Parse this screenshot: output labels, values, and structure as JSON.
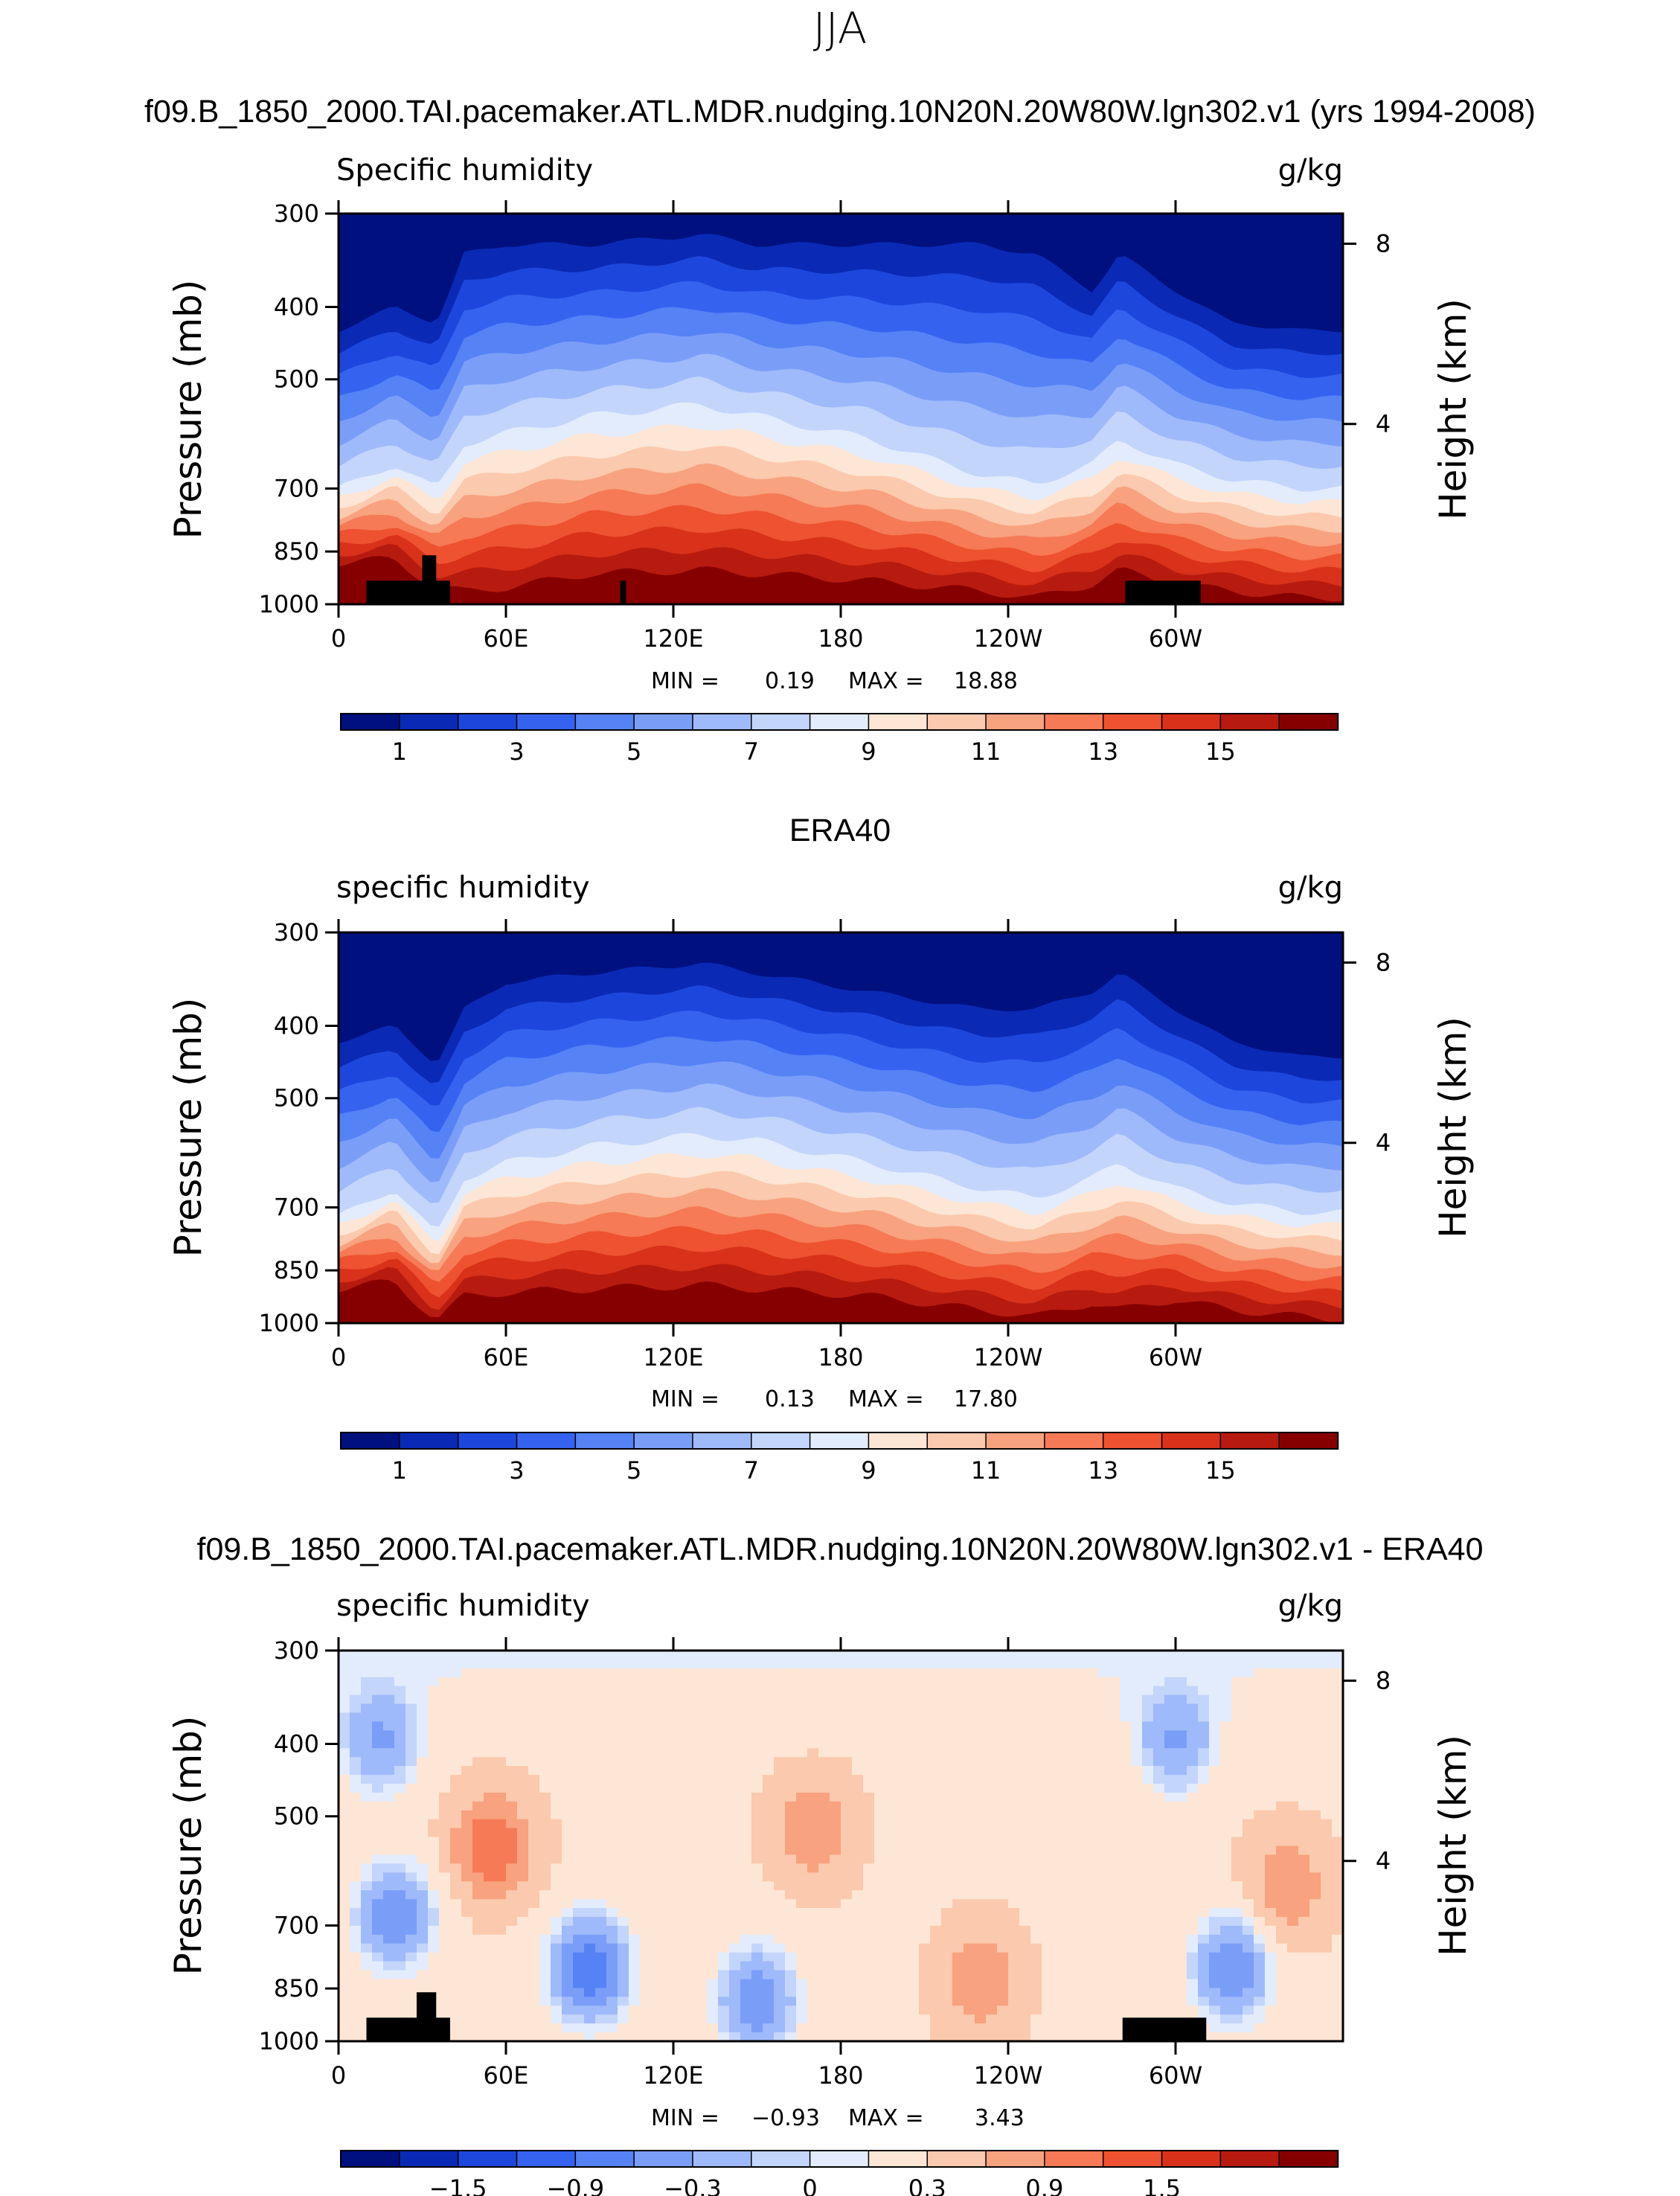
{
  "figure": {
    "season": "JJA",
    "panels": [
      {
        "title": "f09.B_1850_2000.TAI.pacemaker.ATL.MDR.nudging.10N20N.20W80W.lgn302.v1 (yrs 1994-2008)",
        "left_label": "Specific humidity",
        "units": "g/kg",
        "stats": {
          "min_label": "MIN =",
          "min": "0.19",
          "max_label": "MAX =",
          "max": "18.88"
        },
        "colorbar_labels": [
          "1",
          "3",
          "5",
          "7",
          "9",
          "11",
          "13",
          "15"
        ]
      },
      {
        "title": "ERA40",
        "left_label": "specific humidity",
        "units": "g/kg",
        "stats": {
          "min_label": "MIN =",
          "min": "0.13",
          "max_label": "MAX =",
          "max": "17.80"
        },
        "colorbar_labels": [
          "1",
          "3",
          "5",
          "7",
          "9",
          "11",
          "13",
          "15"
        ]
      },
      {
        "title": "f09.B_1850_2000.TAI.pacemaker.ATL.MDR.nudging.10N20N.20W80W.lgn302.v1 - ERA40",
        "left_label": "specific humidity",
        "units": "g/kg",
        "stats": {
          "min_label": "MIN =",
          "min": "−0.93",
          "max_label": "MAX =",
          "max": "3.43"
        },
        "colorbar_labels": [
          "−1.5",
          "−0.9",
          "−0.3",
          "0",
          "0.3",
          "0.9",
          "1.5"
        ]
      }
    ],
    "axes": {
      "ylabel": "Pressure (mb)",
      "ylabel_right": "Height (km)",
      "pressure_ticks": [
        "300",
        "400",
        "500",
        "700",
        "850",
        "1000"
      ],
      "height_ticks": [
        "8",
        "4"
      ],
      "lon_ticks": [
        "0",
        "60E",
        "120E",
        "180",
        "120W",
        "60W"
      ]
    }
  },
  "chart_data": [
    {
      "type": "heatmap",
      "title": "f09.B_1850_2000.TAI.pacemaker.ATL.MDR.nudging.10N20N.20W80W.lgn302.v1 (yrs 1994-2008)",
      "variable": "Specific humidity",
      "units": "g/kg",
      "xlabel": "",
      "ylabel": "Pressure (mb)",
      "ylabel_right": "Height (km)",
      "xlim": [
        0,
        360
      ],
      "ylim": [
        300,
        1000
      ],
      "x_ticks": [
        0,
        60,
        120,
        180,
        240,
        300
      ],
      "y_ticks": [
        300,
        400,
        500,
        700,
        850,
        1000
      ],
      "y_right_ticks_km": [
        4,
        8
      ],
      "contour_levels": [
        1,
        2,
        3,
        4,
        5,
        6,
        7,
        8,
        9,
        10,
        11,
        12,
        13,
        14,
        15
      ],
      "min": 0.19,
      "max": 18.88,
      "colors": [
        "#00107f",
        "#0a2ab5",
        "#1d47dc",
        "#3563f0",
        "#5582f5",
        "#7a9ef8",
        "#9fbafa",
        "#c3d5fb",
        "#e3ecfc",
        "#fde6d5",
        "#fbc9ad",
        "#f8a27f",
        "#f57a55",
        "#ee5230",
        "#d9311a",
        "#b71b0f",
        "#870000"
      ],
      "moisture_tops_mb": {
        "lon_deg": [
          0,
          20,
          35,
          45,
          60,
          90,
          130,
          150,
          190,
          230,
          250,
          270,
          280,
          300,
          320,
          345,
          360
        ],
        "level_1": [
          430,
          400,
          420,
          340,
          330,
          330,
          320,
          330,
          330,
          330,
          340,
          380,
          340,
          380,
          420,
          430,
          430
        ],
        "level_8": [
          700,
          650,
          700,
          610,
          590,
          560,
          540,
          560,
          600,
          670,
          690,
          650,
          600,
          650,
          680,
          700,
          700
        ],
        "level_15": [
          880,
          870,
          950,
          960,
          950,
          910,
          900,
          910,
          930,
          960,
          980,
          940,
          900,
          940,
          960,
          980,
          980
        ]
      },
      "topography_masks": [
        {
          "lon": [
            10,
            40
          ],
          "top_mb": 930
        },
        {
          "lon": [
            30,
            35
          ],
          "top_mb": 860
        },
        {
          "lon": [
            101,
            103
          ],
          "top_mb": 930
        },
        {
          "lon": [
            282,
            309
          ],
          "top_mb": 930
        }
      ]
    },
    {
      "type": "heatmap",
      "title": "ERA40",
      "variable": "specific humidity",
      "units": "g/kg",
      "xlabel": "",
      "ylabel": "Pressure (mb)",
      "ylabel_right": "Height (km)",
      "xlim": [
        0,
        360
      ],
      "ylim": [
        300,
        1000
      ],
      "x_ticks": [
        0,
        60,
        120,
        180,
        240,
        300
      ],
      "y_ticks": [
        300,
        400,
        500,
        700,
        850,
        1000
      ],
      "y_right_ticks_km": [
        4,
        8
      ],
      "contour_levels": [
        1,
        2,
        3,
        4,
        5,
        6,
        7,
        8,
        9,
        10,
        11,
        12,
        13,
        14,
        15
      ],
      "min": 0.13,
      "max": 17.8,
      "colors": [
        "#00107f",
        "#0a2ab5",
        "#1d47dc",
        "#3563f0",
        "#5582f5",
        "#7a9ef8",
        "#9fbafa",
        "#c3d5fb",
        "#e3ecfc",
        "#fde6d5",
        "#fbc9ad",
        "#f8a27f",
        "#f57a55",
        "#ee5230",
        "#d9311a",
        "#b71b0f",
        "#870000"
      ],
      "moisture_tops_mb": {
        "lon_deg": [
          0,
          20,
          35,
          45,
          60,
          90,
          130,
          150,
          190,
          230,
          250,
          270,
          280,
          300,
          320,
          345,
          360
        ],
        "level_1": [
          420,
          400,
          450,
          380,
          350,
          340,
          330,
          340,
          360,
          380,
          380,
          360,
          340,
          380,
          420,
          440,
          440
        ],
        "level_8": [
          720,
          660,
          760,
          640,
          610,
          580,
          560,
          570,
          610,
          660,
          680,
          640,
          610,
          660,
          690,
          710,
          710
        ],
        "level_15": [
          900,
          880,
          990,
          920,
          910,
          900,
          890,
          900,
          920,
          960,
          980,
          940,
          960,
          930,
          960,
          980,
          990
        ]
      },
      "topography_masks": []
    },
    {
      "type": "heatmap",
      "title": "f09.B_1850_2000.TAI.pacemaker.ATL.MDR.nudging.10N20N.20W80W.lgn302.v1 - ERA40",
      "variable": "specific humidity",
      "units": "g/kg",
      "xlabel": "",
      "ylabel": "Pressure (mb)",
      "ylabel_right": "Height (km)",
      "xlim": [
        0,
        360
      ],
      "ylim": [
        300,
        1000
      ],
      "x_ticks": [
        0,
        60,
        120,
        180,
        240,
        300
      ],
      "y_ticks": [
        300,
        400,
        500,
        700,
        850,
        1000
      ],
      "y_right_ticks_km": [
        4,
        8
      ],
      "contour_levels": [
        -1.8,
        -1.5,
        -1.2,
        -0.9,
        -0.6,
        -0.3,
        0,
        0.15,
        0.3,
        0.6,
        0.9,
        1.2,
        1.5,
        1.8,
        2.1
      ],
      "min": -0.93,
      "max": 3.43,
      "colors": [
        "#00107f",
        "#0a2ab5",
        "#1d47dc",
        "#3563f0",
        "#5582f5",
        "#7a9ef8",
        "#9fbafa",
        "#c3d5fb",
        "#e3ecfc",
        "#fde6d5",
        "#fbc9ad",
        "#f8a27f",
        "#f57a55",
        "#ee5230",
        "#d9311a",
        "#b71b0f",
        "#870000"
      ],
      "anomaly_features": [
        {
          "lon": 20,
          "p_mb": 680,
          "value": -0.6
        },
        {
          "lon": 15,
          "p_mb": 400,
          "value": -0.3
        },
        {
          "lon": 55,
          "p_mb": 550,
          "value": 1.5
        },
        {
          "lon": 90,
          "p_mb": 800,
          "value": -0.9
        },
        {
          "lon": 150,
          "p_mb": 880,
          "value": -0.6
        },
        {
          "lon": 170,
          "p_mb": 520,
          "value": 1.2
        },
        {
          "lon": 230,
          "p_mb": 830,
          "value": 1.2
        },
        {
          "lon": 300,
          "p_mb": 400,
          "value": -0.3
        },
        {
          "lon": 320,
          "p_mb": 800,
          "value": -0.6
        },
        {
          "lon": 340,
          "p_mb": 620,
          "value": 1.2
        }
      ],
      "topography_masks": [
        {
          "lon": [
            10,
            40
          ],
          "top_mb": 930
        },
        {
          "lon": [
            28,
            35
          ],
          "top_mb": 860
        },
        {
          "lon": [
            281,
            311
          ],
          "top_mb": 930
        }
      ]
    }
  ]
}
